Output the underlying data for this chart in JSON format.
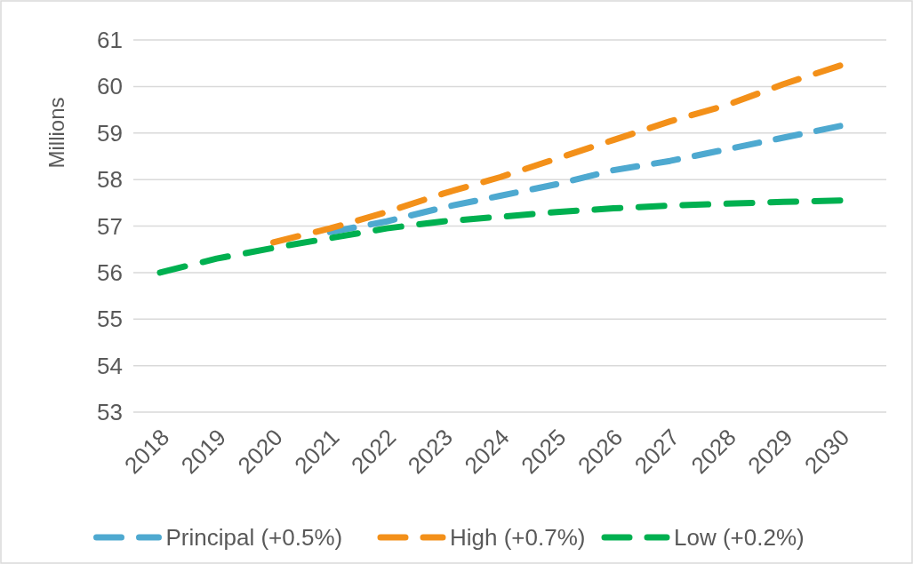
{
  "chart_data": {
    "type": "line",
    "ylabel": "Millions",
    "categories": [
      "2018",
      "2019",
      "2020",
      "2021",
      "2022",
      "2023",
      "2024",
      "2025",
      "2026",
      "2027",
      "2028",
      "2029",
      "2030"
    ],
    "series": [
      {
        "name": "Principal (+0.5%)",
        "color": "#4ea9d0",
        "values": [
          null,
          null,
          null,
          56.87,
          57.1,
          57.4,
          57.65,
          57.9,
          58.2,
          58.4,
          58.65,
          58.9,
          59.15
        ]
      },
      {
        "name": "High (+0.7%)",
        "color": "#f39019",
        "values": [
          null,
          null,
          56.65,
          56.95,
          57.3,
          57.7,
          58.05,
          58.45,
          58.85,
          59.25,
          59.6,
          60.05,
          60.45
        ]
      },
      {
        "name": "Low (+0.2%)",
        "color": "#00b050",
        "values": [
          56.0,
          56.3,
          56.53,
          56.74,
          56.95,
          57.1,
          57.2,
          57.3,
          57.38,
          57.44,
          57.48,
          57.52,
          57.55
        ]
      }
    ],
    "ylim": [
      53,
      61
    ],
    "yticks": [
      53,
      54,
      55,
      56,
      57,
      58,
      59,
      60,
      61
    ],
    "grid": "y",
    "legend": "bottom",
    "line_style": "dashed",
    "marker": "none"
  }
}
